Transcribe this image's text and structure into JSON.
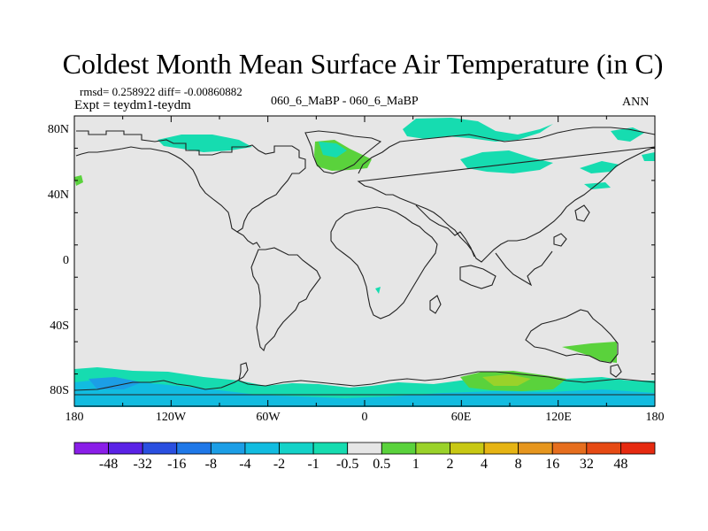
{
  "title": "Coldest Month Mean Surface Air Temperature (in C)",
  "stats": {
    "rmsd_diff": "rmsd= 0.258922 diff= -0.00860882",
    "experiment": "Expt = teydm1-teydm",
    "period": "060_6_MaBP - 060_6_MaBP",
    "season": "ANN"
  },
  "axes": {
    "lat_labels": [
      "80N",
      "40N",
      "0",
      "40S",
      "80S"
    ],
    "lon_labels": [
      "180",
      "120W",
      "60W",
      "0",
      "60E",
      "120E",
      "180"
    ]
  },
  "colorbar": {
    "levels": [
      "-48",
      "-32",
      "-16",
      "-8",
      "-4",
      "-2",
      "-1",
      "-0.5",
      "0.5",
      "1",
      "2",
      "4",
      "8",
      "16",
      "32",
      "48"
    ],
    "colors": [
      "#8a1ee8",
      "#5a22e6",
      "#2a4fe0",
      "#1f78e8",
      "#1c9ee6",
      "#12bce0",
      "#14d2c8",
      "#16dcb0",
      "#e6e6e6",
      "#5ad23c",
      "#9ad22a",
      "#c8c814",
      "#e6b414",
      "#e6961e",
      "#e66e1e",
      "#e64a14",
      "#e62a10"
    ]
  },
  "colors": {
    "land_bg": "#e6e6e6",
    "coast": "#222222",
    "teal": "#16dcb0",
    "cyan": "#12bce0",
    "blue": "#1c9ee6",
    "green": "#5ad23c",
    "yellowgreen": "#9ad22a"
  }
}
